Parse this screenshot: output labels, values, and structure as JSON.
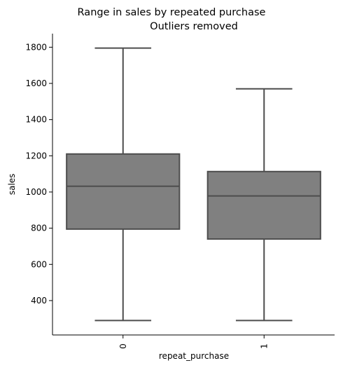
{
  "chart_data": {
    "type": "box",
    "title": "Range in sales by repeated purchase",
    "subtitle": "Outliers removed",
    "xlabel": "repeat_purchase",
    "ylabel": "sales",
    "categories": [
      "0",
      "1"
    ],
    "boxes": [
      {
        "category": "0",
        "whisker_low": 290,
        "q1": 795,
        "median": 1032,
        "q3": 1210,
        "whisker_high": 1795
      },
      {
        "category": "1",
        "whisker_low": 290,
        "q1": 740,
        "median": 978,
        "q3": 1113,
        "whisker_high": 1570
      }
    ],
    "yticks": [
      400,
      600,
      800,
      1000,
      1200,
      1400,
      1600,
      1800
    ],
    "ylim": [
      210,
      1875
    ],
    "grid": false,
    "colors": {
      "box_fill": "#808080",
      "box_line": "#4d4d4d",
      "axis": "#000000"
    }
  }
}
